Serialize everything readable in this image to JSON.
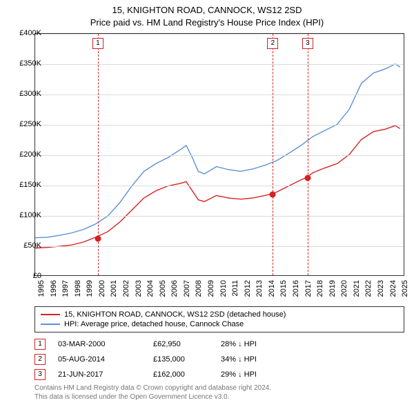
{
  "title_line1": "15, KNIGHTON ROAD, CANNOCK, WS12 2SD",
  "title_line2": "Price paid vs. HM Land Registry's House Price Index (HPI)",
  "chart": {
    "type": "line",
    "background_color": "#ffffff",
    "border_color": "#333333",
    "grid_color": "#d9d9d9",
    "x_start": 1995,
    "x_end": 2025.5,
    "x_ticks": [
      1995,
      1996,
      1997,
      1998,
      1999,
      2000,
      2001,
      2002,
      2003,
      2004,
      2005,
      2006,
      2007,
      2008,
      2009,
      2010,
      2011,
      2012,
      2013,
      2014,
      2015,
      2016,
      2017,
      2018,
      2019,
      2020,
      2021,
      2022,
      2023,
      2024,
      2025
    ],
    "y_min": 0,
    "y_max": 400000,
    "y_ticks": [
      0,
      50000,
      100000,
      150000,
      200000,
      250000,
      300000,
      350000,
      400000
    ],
    "y_tick_labels": [
      "£0",
      "£50K",
      "£100K",
      "£150K",
      "£200K",
      "£250K",
      "£300K",
      "£350K",
      "£400K"
    ],
    "label_fontsize": 11,
    "title_fontsize": 13,
    "line_width": 1.4,
    "marker_line_dash": "4,3",
    "point_radius": 4.5,
    "series": [
      {
        "name": "15, KNIGHTON ROAD, CANNOCK, WS12 2SD (detached house)",
        "color": "#d62021",
        "data": [
          [
            1995,
            45000
          ],
          [
            1996,
            46000
          ],
          [
            1997,
            48000
          ],
          [
            1998,
            50000
          ],
          [
            1999,
            55000
          ],
          [
            2000,
            62950
          ],
          [
            2001,
            72000
          ],
          [
            2002,
            88000
          ],
          [
            2003,
            108000
          ],
          [
            2004,
            128000
          ],
          [
            2005,
            140000
          ],
          [
            2006,
            148000
          ],
          [
            2007,
            152000
          ],
          [
            2007.5,
            155000
          ],
          [
            2008,
            140000
          ],
          [
            2008.5,
            125000
          ],
          [
            2009,
            122000
          ],
          [
            2010,
            132000
          ],
          [
            2011,
            128000
          ],
          [
            2012,
            126000
          ],
          [
            2013,
            128000
          ],
          [
            2014,
            132000
          ],
          [
            2014.6,
            135000
          ],
          [
            2015,
            138000
          ],
          [
            2016,
            148000
          ],
          [
            2017,
            158000
          ],
          [
            2017.47,
            162000
          ],
          [
            2018,
            170000
          ],
          [
            2019,
            178000
          ],
          [
            2020,
            185000
          ],
          [
            2021,
            200000
          ],
          [
            2022,
            225000
          ],
          [
            2023,
            238000
          ],
          [
            2024,
            242000
          ],
          [
            2024.8,
            248000
          ],
          [
            2025.2,
            243000
          ]
        ]
      },
      {
        "name": "HPI: Average price, detached house, Cannock Chase",
        "color": "#5b8fd6",
        "data": [
          [
            1995,
            62000
          ],
          [
            1996,
            63000
          ],
          [
            1997,
            66000
          ],
          [
            1998,
            70000
          ],
          [
            1999,
            76000
          ],
          [
            2000,
            85000
          ],
          [
            2001,
            98000
          ],
          [
            2002,
            120000
          ],
          [
            2003,
            148000
          ],
          [
            2004,
            172000
          ],
          [
            2005,
            185000
          ],
          [
            2006,
            195000
          ],
          [
            2007,
            208000
          ],
          [
            2007.5,
            215000
          ],
          [
            2008,
            195000
          ],
          [
            2008.5,
            172000
          ],
          [
            2009,
            168000
          ],
          [
            2010,
            180000
          ],
          [
            2011,
            175000
          ],
          [
            2012,
            172000
          ],
          [
            2013,
            176000
          ],
          [
            2014,
            182000
          ],
          [
            2015,
            190000
          ],
          [
            2016,
            202000
          ],
          [
            2017,
            215000
          ],
          [
            2018,
            230000
          ],
          [
            2019,
            240000
          ],
          [
            2020,
            250000
          ],
          [
            2021,
            275000
          ],
          [
            2022,
            318000
          ],
          [
            2023,
            335000
          ],
          [
            2024,
            342000
          ],
          [
            2024.8,
            350000
          ],
          [
            2025.2,
            345000
          ]
        ]
      }
    ],
    "markers": [
      {
        "num": "1",
        "x": 2000.17,
        "color": "#d62021"
      },
      {
        "num": "2",
        "x": 2014.6,
        "color": "#d62021"
      },
      {
        "num": "3",
        "x": 2017.47,
        "color": "#d62021"
      }
    ],
    "points": [
      {
        "x": 2000.17,
        "y": 62950,
        "color": "#d62021"
      },
      {
        "x": 2014.6,
        "y": 135000,
        "color": "#d62021"
      },
      {
        "x": 2017.47,
        "y": 162000,
        "color": "#d62021"
      }
    ]
  },
  "legend": {
    "items": [
      {
        "color": "#d62021",
        "label": "15, KNIGHTON ROAD, CANNOCK, WS12 2SD (detached house)"
      },
      {
        "color": "#5b8fd6",
        "label": "HPI: Average price, detached house, Cannock Chase"
      }
    ]
  },
  "events": [
    {
      "num": "1",
      "color": "#d62021",
      "date": "03-MAR-2000",
      "price": "£62,950",
      "delta": "28% ↓ HPI"
    },
    {
      "num": "2",
      "color": "#d62021",
      "date": "05-AUG-2014",
      "price": "£135,000",
      "delta": "34% ↓ HPI"
    },
    {
      "num": "3",
      "color": "#d62021",
      "date": "21-JUN-2017",
      "price": "£162,000",
      "delta": "29% ↓ HPI"
    }
  ],
  "footnote_line1": "Contains HM Land Registry data © Crown copyright and database right 2024.",
  "footnote_line2": "This data is licensed under the Open Government Licence v3.0.",
  "footnote_color": "#757575"
}
